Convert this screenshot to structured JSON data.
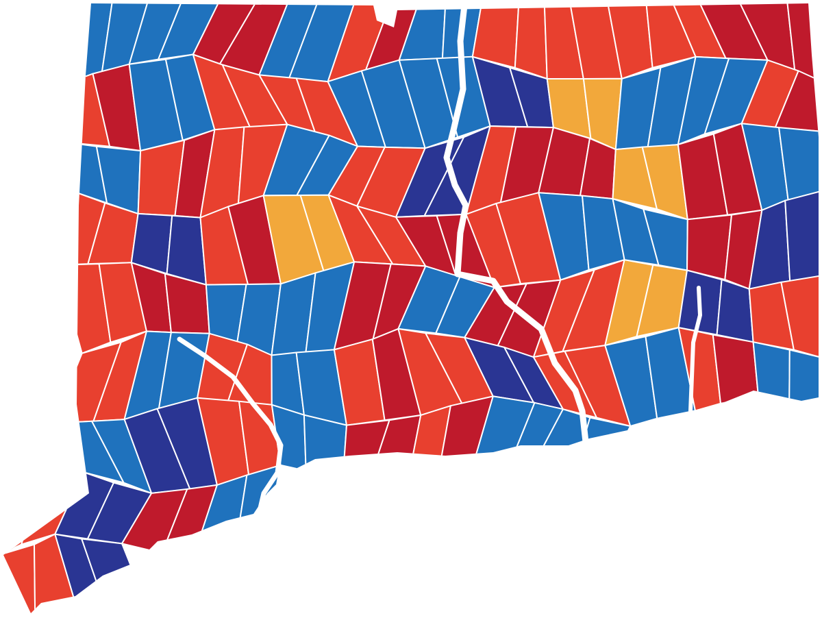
{
  "map": {
    "palette": [
      "#e8402f",
      "#bf1a2c",
      "#1f72bd",
      "#2a3593",
      "#f2a83b"
    ]
  }
}
